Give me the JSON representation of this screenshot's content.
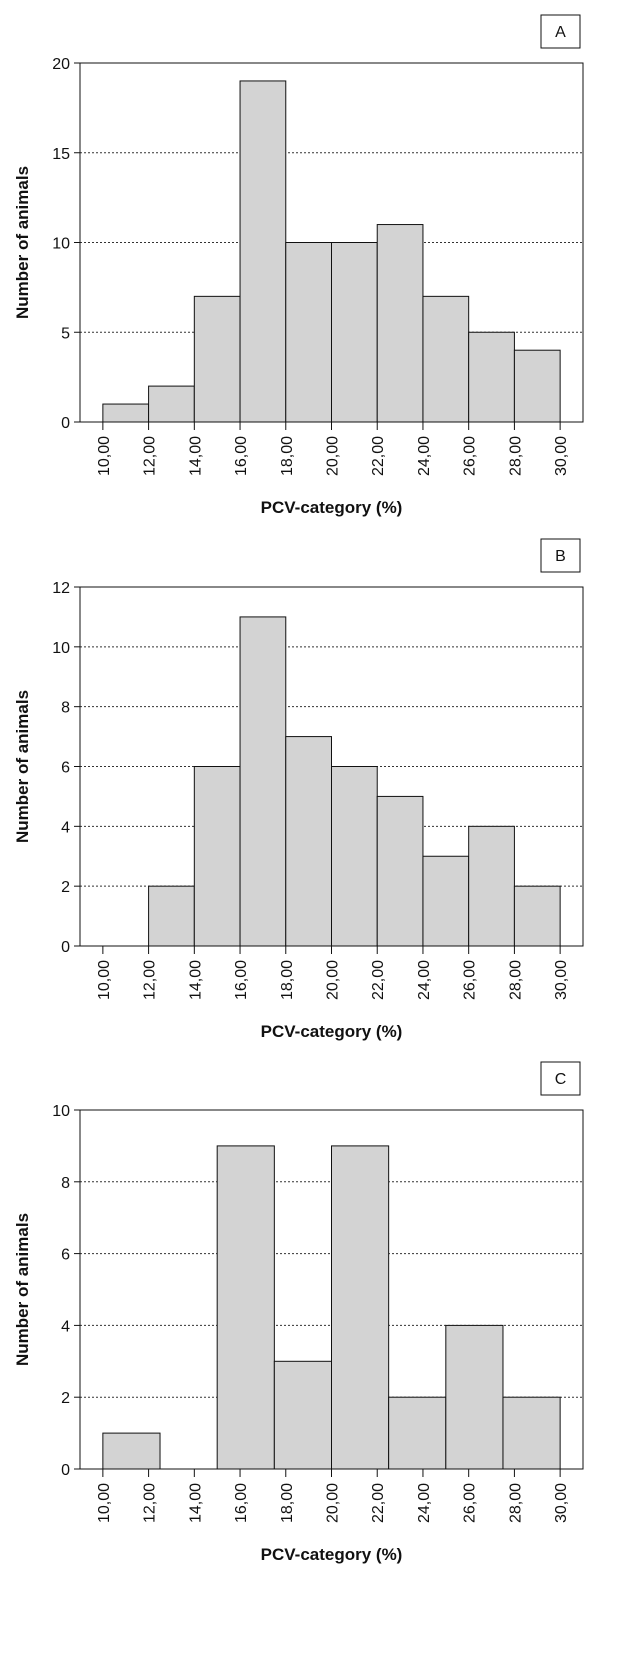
{
  "chart_data": [
    {
      "type": "histogram",
      "panel_label": "A",
      "y_label": "Number of animals",
      "x_label": "PCV-category (%)",
      "bins": [
        10,
        12,
        14,
        16,
        18,
        20,
        22,
        24,
        26,
        28,
        30
      ],
      "counts": [
        1,
        2,
        7,
        19,
        10,
        10,
        11,
        7,
        5,
        4
      ],
      "color": "#d3d3d3",
      "xlim": [
        9,
        31
      ],
      "ylim": [
        0,
        20
      ],
      "yticks": [
        0,
        5,
        10,
        15,
        20
      ],
      "xticks": [
        {
          "value": 10,
          "label": "10,00"
        },
        {
          "value": 12,
          "label": "12,00"
        },
        {
          "value": 14,
          "label": "14,00"
        },
        {
          "value": 16,
          "label": "16,00"
        },
        {
          "value": 18,
          "label": "18,00"
        },
        {
          "value": 20,
          "label": "20,00"
        },
        {
          "value": 22,
          "label": "22,00"
        },
        {
          "value": 24,
          "label": "24,00"
        },
        {
          "value": 26,
          "label": "26,00"
        },
        {
          "value": 28,
          "label": "28,00"
        },
        {
          "value": 30,
          "label": "30,00"
        }
      ],
      "grid": true
    },
    {
      "type": "histogram",
      "panel_label": "B",
      "y_label": "Number of animals",
      "x_label": "PCV-category (%)",
      "bins": [
        10,
        12,
        14,
        16,
        18,
        20,
        22,
        24,
        26,
        28,
        30
      ],
      "counts": [
        0,
        2,
        6,
        11,
        7,
        6,
        5,
        3,
        4,
        2
      ],
      "color": "#d3d3d3",
      "xlim": [
        9,
        31
      ],
      "ylim": [
        0,
        12
      ],
      "yticks": [
        0,
        2,
        4,
        6,
        8,
        10,
        12
      ],
      "xticks": [
        {
          "value": 10,
          "label": "10,00"
        },
        {
          "value": 12,
          "label": "12,00"
        },
        {
          "value": 14,
          "label": "14,00"
        },
        {
          "value": 16,
          "label": "16,00"
        },
        {
          "value": 18,
          "label": "18,00"
        },
        {
          "value": 20,
          "label": "20,00"
        },
        {
          "value": 22,
          "label": "22,00"
        },
        {
          "value": 24,
          "label": "24,00"
        },
        {
          "value": 26,
          "label": "26,00"
        },
        {
          "value": 28,
          "label": "28,00"
        },
        {
          "value": 30,
          "label": "30,00"
        }
      ],
      "grid": true
    },
    {
      "type": "histogram",
      "panel_label": "C",
      "y_label": "Number of animals",
      "x_label": "PCV-category (%)",
      "bins": [
        10,
        12.5,
        15,
        17.5,
        20,
        22.5,
        25,
        27.5,
        30
      ],
      "counts": [
        1,
        0,
        9,
        3,
        9,
        2,
        4,
        2
      ],
      "color": "#d3d3d3",
      "xlim": [
        9,
        31
      ],
      "ylim": [
        0,
        10
      ],
      "yticks": [
        0,
        2,
        4,
        6,
        8,
        10
      ],
      "xticks": [
        {
          "value": 10,
          "label": "10,00"
        },
        {
          "value": 12,
          "label": "12,00"
        },
        {
          "value": 14,
          "label": "14,00"
        },
        {
          "value": 16,
          "label": "16,00"
        },
        {
          "value": 18,
          "label": "18,00"
        },
        {
          "value": 20,
          "label": "20,00"
        },
        {
          "value": 22,
          "label": "22,00"
        },
        {
          "value": 24,
          "label": "24,00"
        },
        {
          "value": 26,
          "label": "26,00"
        },
        {
          "value": 28,
          "label": "28,00"
        },
        {
          "value": 30,
          "label": "30,00"
        }
      ],
      "grid": true
    }
  ]
}
